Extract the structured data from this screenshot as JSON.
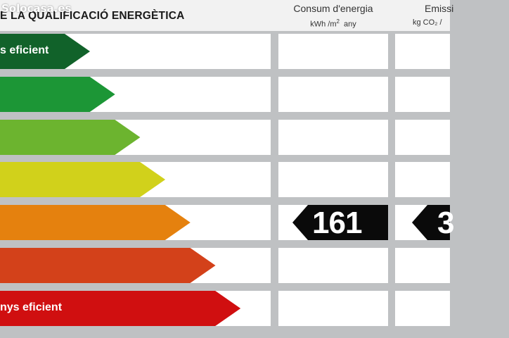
{
  "watermark": "Solocasa.es",
  "header": {
    "title": "E LA QUALIFICACIÓ ENERGÈTICA",
    "consum_title": "Consum d'energia",
    "consum_unit_pre": "kWh /m",
    "consum_unit_sup": "2",
    "consum_unit_post": "  any",
    "emiss_title": "Emissi",
    "emiss_unit": "kg CO₂  /"
  },
  "scale": {
    "rows": [
      {
        "color": "#11622a",
        "label": "s eficient"
      },
      {
        "color": "#1c9636",
        "label": ""
      },
      {
        "color": "#6cb42f",
        "label": ""
      },
      {
        "color": "#d1d11b",
        "label": ""
      },
      {
        "color": "#e5810e",
        "label": ""
      },
      {
        "color": "#d3411a",
        "label": ""
      },
      {
        "color": "#d00f10",
        "label": "nys eficient"
      }
    ]
  },
  "rating": {
    "consum_value": "161",
    "emiss_value": "3"
  }
}
